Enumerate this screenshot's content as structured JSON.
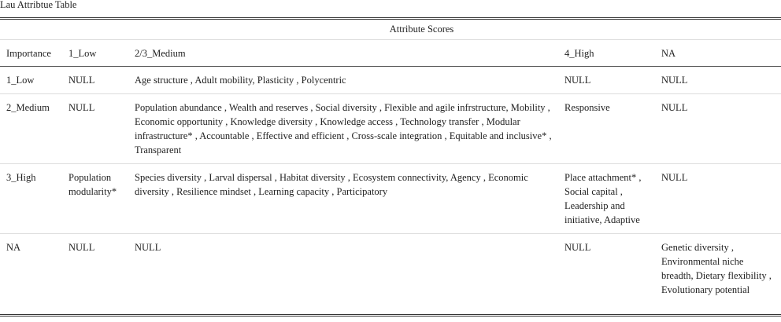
{
  "caption": "Lau Attribtue Table",
  "table": {
    "group_header": "Attribute Scores",
    "columns": [
      "Importance",
      "1_Low",
      "2/3_Medium",
      "4_High",
      "NA"
    ],
    "rows": [
      [
        "1_Low",
        "NULL",
        "Age structure , Adult mobility, Plasticity , Polycentric",
        "NULL",
        "NULL"
      ],
      [
        "2_Medium",
        "NULL",
        "Population abundance , Wealth and reserves , Social diversity , Flexible and agile infrstructure, Mobility , Economic opportunity , Knowledge diversity , Knowledge access , Technology transfer , Modular infrastructure* , Accountable , Effective and efficient , Cross-scale integration , Equitable and inclusive* , Transparent",
        "Responsive",
        "NULL"
      ],
      [
        "3_High",
        "Population modularity*",
        "Species diversity , Larval dispersal , Habitat diversity , Ecosystem connectivity, Agency , Economic diversity , Resilience mindset , Learning capacity , Participatory",
        "Place attachment* , Social capital , Leadership and initiative, Adaptive",
        "NULL"
      ],
      [
        "NA",
        "NULL",
        "NULL",
        "NULL",
        "Genetic diversity , Environmental niche breadth, Dietary flexibility , Evolutionary potential"
      ]
    ]
  }
}
